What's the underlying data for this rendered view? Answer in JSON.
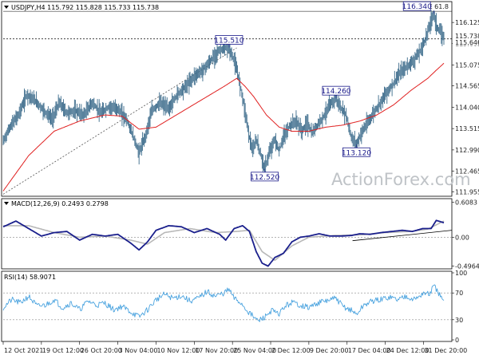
{
  "colors": {
    "price": "#3a6a8a",
    "ema": "#e02020",
    "macd_line": "#1a1f8c",
    "macd_signal": "#b8b8b8",
    "rsi": "#4aa3df",
    "box_border": "#1a1a8a",
    "watermark": "#bfc3c7"
  },
  "watermark": "ActionForex.com",
  "chart_data": [
    {
      "type": "line",
      "header": "USDJPY,H4  115.792 115.828 115.733 115.738",
      "y_ticks": [
        "116.125",
        "115.605",
        "115.075",
        "114.565",
        "114.040",
        "113.515",
        "112.990",
        "112.465",
        "111.955"
      ],
      "ylim": [
        111.85,
        116.52
      ],
      "x_ticks": [
        "12 Oct 2021",
        "19 Oct 12:00",
        "26 Oct 20:00",
        "3 Nov 04:00",
        "10 Nov 12:00",
        "17 Nov 20:00",
        "25 Nov 04:00",
        "2 Dec 12:00",
        "9 Dec 20:00",
        "17 Dec 04:00",
        "24 Dec 12:00",
        "31 Dec 20:00"
      ],
      "x_tick_index": [
        0,
        45,
        90,
        135,
        180,
        225,
        270,
        315,
        360,
        405,
        450,
        495
      ],
      "bars_total": 520,
      "price_keypoints": [
        [
          0,
          113.2
        ],
        [
          8,
          113.55
        ],
        [
          18,
          113.85
        ],
        [
          28,
          114.35
        ],
        [
          38,
          114.2
        ],
        [
          48,
          113.95
        ],
        [
          58,
          113.75
        ],
        [
          66,
          114.15
        ],
        [
          75,
          113.9
        ],
        [
          85,
          113.95
        ],
        [
          95,
          113.85
        ],
        [
          105,
          114.15
        ],
        [
          115,
          113.9
        ],
        [
          125,
          114.05
        ],
        [
          135,
          114.0
        ],
        [
          145,
          113.75
        ],
        [
          152,
          113.4
        ],
        [
          160,
          112.92
        ],
        [
          168,
          113.35
        ],
        [
          175,
          113.95
        ],
        [
          185,
          114.15
        ],
        [
          195,
          114.0
        ],
        [
          205,
          114.35
        ],
        [
          215,
          114.55
        ],
        [
          225,
          114.8
        ],
        [
          235,
          114.95
        ],
        [
          245,
          115.2
        ],
        [
          255,
          115.45
        ],
        [
          265,
          115.51
        ],
        [
          272,
          115.2
        ],
        [
          277,
          114.8
        ],
        [
          282,
          114.3
        ],
        [
          286,
          113.8
        ],
        [
          290,
          113.3
        ],
        [
          294,
          112.95
        ],
        [
          298,
          113.25
        ],
        [
          303,
          112.9
        ],
        [
          308,
          112.52
        ],
        [
          314,
          112.95
        ],
        [
          320,
          113.25
        ],
        [
          325,
          112.95
        ],
        [
          330,
          113.3
        ],
        [
          338,
          113.6
        ],
        [
          345,
          113.7
        ],
        [
          352,
          113.45
        ],
        [
          358,
          113.65
        ],
        [
          364,
          113.4
        ],
        [
          370,
          113.6
        ],
        [
          377,
          113.8
        ],
        [
          385,
          114.1
        ],
        [
          392,
          114.26
        ],
        [
          398,
          114.0
        ],
        [
          404,
          113.85
        ],
        [
          410,
          113.3
        ],
        [
          416,
          113.12
        ],
        [
          423,
          113.45
        ],
        [
          432,
          113.75
        ],
        [
          441,
          114.05
        ],
        [
          450,
          114.35
        ],
        [
          459,
          114.6
        ],
        [
          468,
          114.9
        ],
        [
          476,
          115.05
        ],
        [
          484,
          115.2
        ],
        [
          492,
          115.45
        ],
        [
          498,
          115.75
        ],
        [
          503,
          116.1
        ],
        [
          507,
          116.34
        ],
        [
          511,
          116.0
        ],
        [
          515,
          115.9
        ],
        [
          519,
          115.738
        ]
      ],
      "ema": {
        "series_index": [
          0,
          30,
          60,
          90,
          120,
          140,
          160,
          180,
          200,
          220,
          240,
          260,
          275,
          285,
          295,
          310,
          325,
          340,
          360,
          380,
          400,
          420,
          440,
          460,
          480,
          500,
          510,
          519
        ],
        "values": [
          111.98,
          112.85,
          113.45,
          113.7,
          113.85,
          113.82,
          113.5,
          113.55,
          113.8,
          114.05,
          114.3,
          114.55,
          114.75,
          114.55,
          114.3,
          113.85,
          113.55,
          113.45,
          113.45,
          113.55,
          113.6,
          113.7,
          113.85,
          114.1,
          114.45,
          114.75,
          114.95,
          115.12
        ]
      },
      "dotted_level": 115.72,
      "fib_level": 116.4,
      "fib_label": "FE 61.8",
      "current_labels": [
        "115.738",
        "115.640"
      ],
      "price_labels": [
        {
          "text": "115.510",
          "bar": 266,
          "value": 115.51
        },
        {
          "text": "112.520",
          "bar": 308,
          "value": 112.52
        },
        {
          "text": "114.260",
          "bar": 392,
          "value": 114.26
        },
        {
          "text": "113.120",
          "bar": 416,
          "value": 113.12
        },
        {
          "text": "116.340",
          "bar": 507,
          "value": 116.34
        }
      ],
      "trendline": {
        "from": [
          0,
          111.9
        ],
        "to": [
          275,
          115.5
        ],
        "style": "dotted"
      }
    },
    {
      "type": "line",
      "header": "MACD(12,26,9) 0.2493 0.2798",
      "y_ticks": [
        "0.6083",
        "0.00",
        "-0.4964"
      ],
      "ylim": [
        -0.52,
        0.64
      ],
      "macd": {
        "series_index": [
          0,
          15,
          30,
          45,
          60,
          75,
          90,
          105,
          120,
          135,
          150,
          160,
          170,
          180,
          195,
          210,
          225,
          240,
          255,
          262,
          272,
          282,
          290,
          298,
          305,
          312,
          320,
          330,
          340,
          350,
          360,
          372,
          385,
          398,
          410,
          420,
          432,
          445,
          458,
          470,
          482,
          494,
          504,
          510,
          515,
          519
        ],
        "values": [
          0.18,
          0.28,
          0.15,
          0.02,
          0.08,
          0.1,
          -0.05,
          0.05,
          0.02,
          0.05,
          -0.1,
          -0.22,
          -0.08,
          0.12,
          0.2,
          0.18,
          0.08,
          0.15,
          0.05,
          -0.05,
          0.15,
          0.2,
          0.1,
          -0.25,
          -0.45,
          -0.5,
          -0.35,
          -0.28,
          -0.08,
          0.0,
          0.02,
          0.06,
          0.02,
          0.02,
          0.03,
          0.06,
          0.05,
          0.08,
          0.1,
          0.12,
          0.1,
          0.15,
          0.15,
          0.29,
          0.27,
          0.25
        ]
      },
      "signal": {
        "series_index": [
          0,
          30,
          60,
          90,
          120,
          150,
          170,
          190,
          220,
          250,
          275,
          290,
          305,
          320,
          340,
          360,
          390,
          420,
          450,
          480,
          500,
          519
        ],
        "values": [
          0.2,
          0.2,
          0.08,
          0.0,
          0.02,
          -0.05,
          -0.12,
          0.08,
          0.15,
          0.08,
          0.1,
          0.12,
          -0.25,
          -0.4,
          -0.15,
          0.0,
          0.03,
          0.04,
          0.08,
          0.1,
          0.14,
          0.28
        ]
      },
      "support_line": {
        "from": [
          355,
          -0.06
        ],
        "to": [
          519,
          0.12
        ]
      }
    },
    {
      "type": "line",
      "header": "RSI(14) 58.9071",
      "y_ticks": [
        "100",
        "70",
        "30",
        "0"
      ],
      "ylim": [
        0,
        100
      ],
      "reference_levels": [
        70,
        30
      ],
      "rsi": {
        "series_index": [
          0,
          10,
          20,
          30,
          40,
          50,
          60,
          70,
          80,
          90,
          100,
          110,
          120,
          130,
          140,
          150,
          160,
          170,
          180,
          190,
          200,
          210,
          220,
          230,
          240,
          250,
          260,
          266,
          272,
          280,
          290,
          300,
          308,
          316,
          324,
          332,
          340,
          350,
          360,
          370,
          380,
          392,
          400,
          410,
          416,
          425,
          435,
          445,
          455,
          465,
          475,
          485,
          495,
          502,
          507,
          512,
          516,
          519
        ],
        "values": [
          48,
          60,
          55,
          65,
          50,
          52,
          60,
          48,
          55,
          45,
          58,
          52,
          55,
          45,
          50,
          42,
          34,
          45,
          60,
          68,
          62,
          66,
          58,
          62,
          72,
          65,
          70,
          75,
          62,
          55,
          40,
          28,
          34,
          44,
          38,
          50,
          56,
          52,
          48,
          55,
          58,
          62,
          50,
          44,
          38,
          52,
          58,
          60,
          64,
          60,
          66,
          60,
          70,
          68,
          80,
          72,
          62,
          58.9
        ]
      }
    }
  ]
}
